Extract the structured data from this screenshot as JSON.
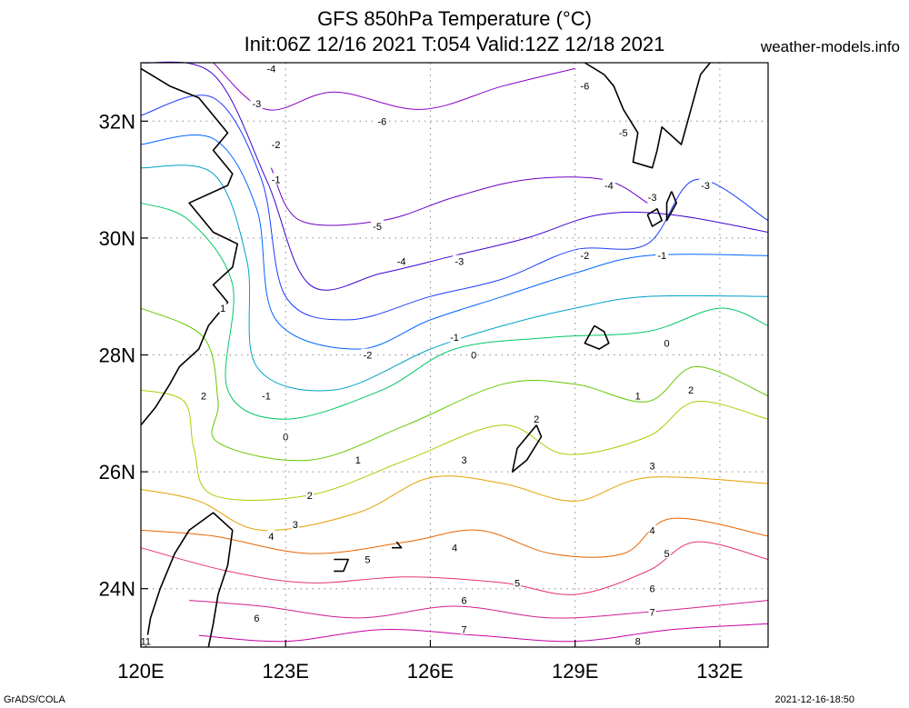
{
  "header": {
    "title_line1": "GFS 850hPa Temperature (°C)",
    "title_line2": "Init:06Z 12/16 2021 T:054 Valid:12Z 12/18 2021",
    "site": "weather-models.info"
  },
  "footer": {
    "left": "GrADS/COLA",
    "right": "2021-12-16-18:50"
  },
  "map": {
    "lon_range": [
      120,
      133
    ],
    "lat_range": [
      23,
      33
    ],
    "lon_ticks": [
      {
        "value": 120,
        "label": "120E"
      },
      {
        "value": 123,
        "label": "123E"
      },
      {
        "value": 126,
        "label": "126E"
      },
      {
        "value": 129,
        "label": "129E"
      },
      {
        "value": 132,
        "label": "132E"
      }
    ],
    "lat_ticks": [
      {
        "value": 24,
        "label": "24N"
      },
      {
        "value": 26,
        "label": "26N"
      },
      {
        "value": 28,
        "label": "28N"
      },
      {
        "value": 30,
        "label": "30N"
      },
      {
        "value": 32,
        "label": "32N"
      }
    ],
    "grid": true,
    "contours": [
      {
        "value": -6,
        "color": "#8a00c8",
        "points": [
          [
            121.5,
            33
          ],
          [
            122.6,
            32.2
          ],
          [
            124.0,
            32.5
          ],
          [
            125.8,
            32.2
          ],
          [
            127.5,
            32.6
          ],
          [
            129.0,
            32.9
          ]
        ]
      },
      {
        "value": -5,
        "color": "#6e00c8",
        "points": [
          [
            122.7,
            31.2
          ],
          [
            123.3,
            30.3
          ],
          [
            125.0,
            30.3
          ],
          [
            126.5,
            30.7
          ],
          [
            128.0,
            31.0
          ],
          [
            129.6,
            31.0
          ],
          [
            130.5,
            30.6
          ]
        ]
      },
      {
        "value": -4,
        "color": "#4000d0",
        "points": [
          [
            120,
            33.0
          ],
          [
            121.5,
            32.8
          ],
          [
            122.6,
            31.0
          ],
          [
            123.5,
            29.2
          ],
          [
            125.0,
            29.4
          ],
          [
            126.5,
            29.7
          ],
          [
            128.0,
            30.0
          ],
          [
            129.5,
            30.4
          ],
          [
            131.0,
            30.4
          ],
          [
            133,
            30.1
          ]
        ]
      },
      {
        "value": -3,
        "color": "#1e3cff",
        "points": [
          [
            120,
            32.1
          ],
          [
            121.5,
            32.4
          ],
          [
            122.5,
            31.0
          ],
          [
            123.0,
            29.0
          ],
          [
            124.3,
            28.6
          ],
          [
            126.0,
            29.0
          ],
          [
            127.5,
            29.3
          ],
          [
            129.0,
            29.8
          ],
          [
            130.5,
            29.9
          ],
          [
            131.5,
            31.0
          ],
          [
            133,
            30.3
          ]
        ]
      },
      {
        "value": -2,
        "color": "#0064ff",
        "points": [
          [
            120,
            31.6
          ],
          [
            121.5,
            31.7
          ],
          [
            122.4,
            30.5
          ],
          [
            122.8,
            28.6
          ],
          [
            124.5,
            28.1
          ],
          [
            126.0,
            28.6
          ],
          [
            127.5,
            29.0
          ],
          [
            129.0,
            29.4
          ],
          [
            130.5,
            29.7
          ],
          [
            133,
            29.7
          ]
        ]
      },
      {
        "value": -1,
        "color": "#00a0c8",
        "points": [
          [
            120,
            31.2
          ],
          [
            121.5,
            31.1
          ],
          [
            122.2,
            29.6
          ],
          [
            122.4,
            27.8
          ],
          [
            124.0,
            27.4
          ],
          [
            126.0,
            28.1
          ],
          [
            127.5,
            28.5
          ],
          [
            129.0,
            28.8
          ],
          [
            130.5,
            29.0
          ],
          [
            133,
            29.0
          ]
        ]
      },
      {
        "value": 0,
        "color": "#00c864",
        "points": [
          [
            120,
            30.6
          ],
          [
            121.0,
            30.3
          ],
          [
            121.9,
            29.2
          ],
          [
            121.8,
            27.4
          ],
          [
            123.0,
            26.9
          ],
          [
            125.0,
            27.4
          ],
          [
            126.5,
            28.1
          ],
          [
            128.5,
            28.3
          ],
          [
            130.5,
            28.4
          ],
          [
            132.0,
            28.8
          ],
          [
            133,
            28.5
          ]
        ]
      },
      {
        "value": 1,
        "color": "#64c800",
        "points": [
          [
            120,
            28.8
          ],
          [
            121.3,
            28.3
          ],
          [
            121.6,
            27.2
          ],
          [
            121.6,
            26.5
          ],
          [
            123.5,
            26.2
          ],
          [
            125.5,
            26.8
          ],
          [
            127.5,
            27.5
          ],
          [
            129.0,
            27.5
          ],
          [
            130.5,
            27.2
          ],
          [
            131.5,
            27.8
          ],
          [
            133,
            27.3
          ]
        ]
      },
      {
        "value": 2,
        "color": "#b4c800",
        "points": [
          [
            120,
            27.4
          ],
          [
            120.9,
            27.2
          ],
          [
            121.1,
            26.4
          ],
          [
            121.5,
            25.6
          ],
          [
            123.5,
            25.6
          ],
          [
            125.5,
            26.2
          ],
          [
            127.5,
            26.8
          ],
          [
            128.8,
            26.3
          ],
          [
            130.5,
            26.6
          ],
          [
            131.5,
            27.2
          ],
          [
            133,
            26.9
          ]
        ]
      },
      {
        "value": 3,
        "color": "#e6a000",
        "points": [
          [
            120,
            25.7
          ],
          [
            121.2,
            25.5
          ],
          [
            122.5,
            25.0
          ],
          [
            124.5,
            25.3
          ],
          [
            126.0,
            25.9
          ],
          [
            127.5,
            25.8
          ],
          [
            129.0,
            25.5
          ],
          [
            130.5,
            25.9
          ],
          [
            133,
            25.8
          ]
        ]
      },
      {
        "value": 4,
        "color": "#e66400",
        "points": [
          [
            120,
            25.0
          ],
          [
            121.5,
            24.9
          ],
          [
            123.5,
            24.6
          ],
          [
            125.5,
            24.8
          ],
          [
            127.0,
            25.0
          ],
          [
            128.5,
            24.6
          ],
          [
            130.0,
            24.6
          ],
          [
            131.0,
            25.2
          ],
          [
            133,
            24.9
          ]
        ]
      },
      {
        "value": 5,
        "color": "#e6326e",
        "points": [
          [
            120,
            24.7
          ],
          [
            121.8,
            24.3
          ],
          [
            123.5,
            24.1
          ],
          [
            125.5,
            24.2
          ],
          [
            127.5,
            24.1
          ],
          [
            129.0,
            23.9
          ],
          [
            130.5,
            24.3
          ],
          [
            131.5,
            24.8
          ],
          [
            133,
            24.5
          ]
        ]
      },
      {
        "value": 6,
        "color": "#d21e8c",
        "points": [
          [
            121.0,
            23.8
          ],
          [
            122.5,
            23.7
          ],
          [
            124.5,
            23.5
          ],
          [
            126.5,
            23.7
          ],
          [
            128.5,
            23.5
          ],
          [
            130.5,
            23.6
          ],
          [
            133,
            23.8
          ]
        ]
      },
      {
        "value": 7,
        "color": "#c800a0",
        "points": [
          [
            121.2,
            23.2
          ],
          [
            123.0,
            23.1
          ],
          [
            125.0,
            23.3
          ],
          [
            127.0,
            23.2
          ],
          [
            129.0,
            23.1
          ],
          [
            131.0,
            23.3
          ],
          [
            133,
            23.4
          ]
        ]
      }
    ],
    "contour_labels": [
      {
        "text": "-6",
        "lon": 125.0,
        "lat": 32.0
      },
      {
        "text": "-6",
        "lon": 129.2,
        "lat": 32.6
      },
      {
        "text": "-5",
        "lon": 124.9,
        "lat": 30.2
      },
      {
        "text": "-5",
        "lon": 130.0,
        "lat": 31.8
      },
      {
        "text": "-4",
        "lon": 122.7,
        "lat": 32.9
      },
      {
        "text": "-4",
        "lon": 125.4,
        "lat": 29.6
      },
      {
        "text": "-4",
        "lon": 129.7,
        "lat": 30.9
      },
      {
        "text": "-3",
        "lon": 122.4,
        "lat": 32.3
      },
      {
        "text": "-3",
        "lon": 126.6,
        "lat": 29.6
      },
      {
        "text": "-3",
        "lon": 130.6,
        "lat": 30.7
      },
      {
        "text": "-3",
        "lon": 131.7,
        "lat": 30.9
      },
      {
        "text": "-2",
        "lon": 122.8,
        "lat": 31.6
      },
      {
        "text": "-2",
        "lon": 124.7,
        "lat": 28.0
      },
      {
        "text": "-2",
        "lon": 129.2,
        "lat": 29.7
      },
      {
        "text": "-1",
        "lon": 122.8,
        "lat": 31.0
      },
      {
        "text": "-1",
        "lon": 122.6,
        "lat": 27.3
      },
      {
        "text": "-1",
        "lon": 126.5,
        "lat": 28.3
      },
      {
        "text": "-1",
        "lon": 130.8,
        "lat": 29.7
      },
      {
        "text": "0",
        "lon": 123.0,
        "lat": 26.6
      },
      {
        "text": "0",
        "lon": 126.9,
        "lat": 28.0
      },
      {
        "text": "0",
        "lon": 130.9,
        "lat": 28.2
      },
      {
        "text": "1",
        "lon": 121.7,
        "lat": 28.8
      },
      {
        "text": "1",
        "lon": 124.5,
        "lat": 26.2
      },
      {
        "text": "1",
        "lon": 130.3,
        "lat": 27.3
      },
      {
        "text": "2",
        "lon": 121.3,
        "lat": 27.3
      },
      {
        "text": "2",
        "lon": 123.5,
        "lat": 25.6
      },
      {
        "text": "2",
        "lon": 128.2,
        "lat": 26.9
      },
      {
        "text": "2",
        "lon": 131.4,
        "lat": 27.4
      },
      {
        "text": "3",
        "lon": 123.2,
        "lat": 25.1
      },
      {
        "text": "3",
        "lon": 126.7,
        "lat": 26.2
      },
      {
        "text": "3",
        "lon": 130.6,
        "lat": 26.1
      },
      {
        "text": "4",
        "lon": 122.7,
        "lat": 24.9
      },
      {
        "text": "4",
        "lon": 126.5,
        "lat": 24.7
      },
      {
        "text": "4",
        "lon": 130.6,
        "lat": 25.0
      },
      {
        "text": "5",
        "lon": 124.7,
        "lat": 24.5
      },
      {
        "text": "5",
        "lon": 127.8,
        "lat": 24.1
      },
      {
        "text": "5",
        "lon": 130.9,
        "lat": 24.6
      },
      {
        "text": "6",
        "lon": 122.4,
        "lat": 23.5
      },
      {
        "text": "6",
        "lon": 126.7,
        "lat": 23.8
      },
      {
        "text": "6",
        "lon": 130.6,
        "lat": 24.0
      },
      {
        "text": "7",
        "lon": 126.7,
        "lat": 23.3
      },
      {
        "text": "7",
        "lon": 130.6,
        "lat": 23.6
      },
      {
        "text": "8",
        "lon": 130.3,
        "lat": 23.1
      },
      {
        "text": "11",
        "lon": 120.1,
        "lat": 23.1
      }
    ],
    "coastlines": [
      [
        [
          120.0,
          32.9
        ],
        [
          120.6,
          32.6
        ],
        [
          121.2,
          32.4
        ],
        [
          121.8,
          31.8
        ],
        [
          121.5,
          31.5
        ],
        [
          121.9,
          31.1
        ],
        [
          121.8,
          30.9
        ],
        [
          121.0,
          30.6
        ],
        [
          121.5,
          30.1
        ],
        [
          122.0,
          29.9
        ],
        [
          121.9,
          29.5
        ],
        [
          121.5,
          29.2
        ],
        [
          121.8,
          28.9
        ],
        [
          121.4,
          28.5
        ],
        [
          121.2,
          28.1
        ],
        [
          120.8,
          27.8
        ],
        [
          120.6,
          27.5
        ],
        [
          120.3,
          27.1
        ],
        [
          120.0,
          26.8
        ]
      ],
      [
        [
          121.9,
          25.0
        ],
        [
          121.5,
          25.3
        ],
        [
          121.0,
          25.0
        ],
        [
          120.7,
          24.6
        ],
        [
          120.4,
          24.0
        ],
        [
          120.2,
          23.5
        ],
        [
          120.1,
          23.0
        ]
      ],
      [
        [
          121.9,
          25.0
        ],
        [
          121.8,
          24.4
        ],
        [
          121.6,
          23.9
        ],
        [
          121.5,
          23.4
        ],
        [
          121.4,
          23.0
        ]
      ],
      [
        [
          129.2,
          33.0
        ],
        [
          129.6,
          32.8
        ],
        [
          129.8,
          32.6
        ],
        [
          130.0,
          32.2
        ],
        [
          130.3,
          31.8
        ],
        [
          130.2,
          31.3
        ],
        [
          130.6,
          31.2
        ],
        [
          130.7,
          31.5
        ],
        [
          130.8,
          31.9
        ],
        [
          131.2,
          31.6
        ],
        [
          131.4,
          32.2
        ],
        [
          131.6,
          32.8
        ],
        [
          131.8,
          33.0
        ]
      ],
      [
        [
          129.4,
          28.5
        ],
        [
          129.6,
          28.4
        ],
        [
          129.7,
          28.2
        ],
        [
          129.5,
          28.1
        ],
        [
          129.2,
          28.2
        ],
        [
          129.4,
          28.5
        ]
      ],
      [
        [
          128.2,
          26.8
        ],
        [
          128.3,
          26.6
        ],
        [
          128.0,
          26.2
        ],
        [
          127.7,
          26.0
        ],
        [
          127.8,
          26.4
        ],
        [
          128.2,
          26.8
        ]
      ],
      [
        [
          130.5,
          30.4
        ],
        [
          130.7,
          30.5
        ],
        [
          130.8,
          30.3
        ],
        [
          130.6,
          30.2
        ],
        [
          130.5,
          30.4
        ]
      ],
      [
        [
          131.0,
          30.8
        ],
        [
          131.1,
          30.6
        ],
        [
          130.9,
          30.3
        ],
        [
          130.9,
          30.6
        ],
        [
          131.0,
          30.8
        ]
      ],
      [
        [
          124.0,
          24.5
        ],
        [
          124.3,
          24.5
        ],
        [
          124.2,
          24.3
        ],
        [
          124.0,
          24.3
        ]
      ],
      [
        [
          125.3,
          24.8
        ],
        [
          125.4,
          24.7
        ],
        [
          125.2,
          24.7
        ]
      ]
    ]
  }
}
